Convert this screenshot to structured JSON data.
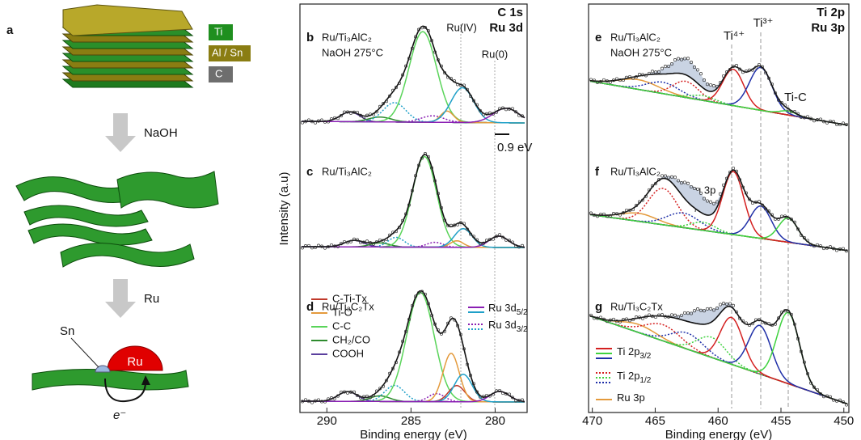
{
  "panel_a": {
    "letter": "a",
    "legend": [
      "Ti",
      "Al / Sn",
      "C"
    ],
    "step1": "NaOH",
    "step2": "Ru",
    "sn_label": "Sn",
    "ru_label": "Ru",
    "electron": "e⁻"
  },
  "panel_left": {
    "y_axis_label": "Intensity (a.u)",
    "x_axis_label": "Binding energy (eV)",
    "corner_title": [
      "C 1s",
      "Ru 3d"
    ],
    "xlim": [
      291.6,
      278.1
    ],
    "xticks": [
      290,
      285,
      280
    ],
    "peak_labels": [
      "Ru(IV)",
      "Ru(0)"
    ],
    "scale_bar": "0.9 eV",
    "subpanels": [
      {
        "letter": "b",
        "sample": "Ru/Ti₃AlC₂",
        "condition": "NaOH 275°C"
      },
      {
        "letter": "c",
        "sample": "Ru/Ti₃AlC₂"
      },
      {
        "letter": "d",
        "sample": "Ru/Ti₃C₂Tx"
      }
    ],
    "legend": [
      "C-Ti-Tx",
      "Ti-O",
      "C-C",
      "CH₂/CO",
      "COOH"
    ],
    "ru_legend": [
      {
        "main": "Ru 3d",
        "sub": "5/2"
      },
      {
        "main": "Ru 3d",
        "sub": "3/2"
      }
    ]
  },
  "panel_right": {
    "x_axis_label": "Binding energy (eV)",
    "corner_title": [
      "Ti 2p",
      "Ru 3p"
    ],
    "xlim": [
      470.3,
      449.6
    ],
    "xticks": [
      470,
      465,
      460,
      455,
      450
    ],
    "peak_labels": [
      "Ti⁴⁺",
      "Ti³⁺",
      "Ti-C"
    ],
    "ru3p_label": "Ru 3p",
    "subpanels": [
      {
        "letter": "e",
        "sample": "Ru/Ti₃AlC₂",
        "condition": "NaOH 275°C"
      },
      {
        "letter": "f",
        "sample": "Ru/Ti₃AlC₂"
      },
      {
        "letter": "g",
        "sample": "Ru/Ti₃C₂Tx"
      }
    ],
    "legend": [
      {
        "main": "Ti 2p",
        "sub": "3/2"
      },
      {
        "main": "Ti 2p",
        "sub": "1/2"
      },
      {
        "main": "Ru 3p"
      }
    ]
  }
}
